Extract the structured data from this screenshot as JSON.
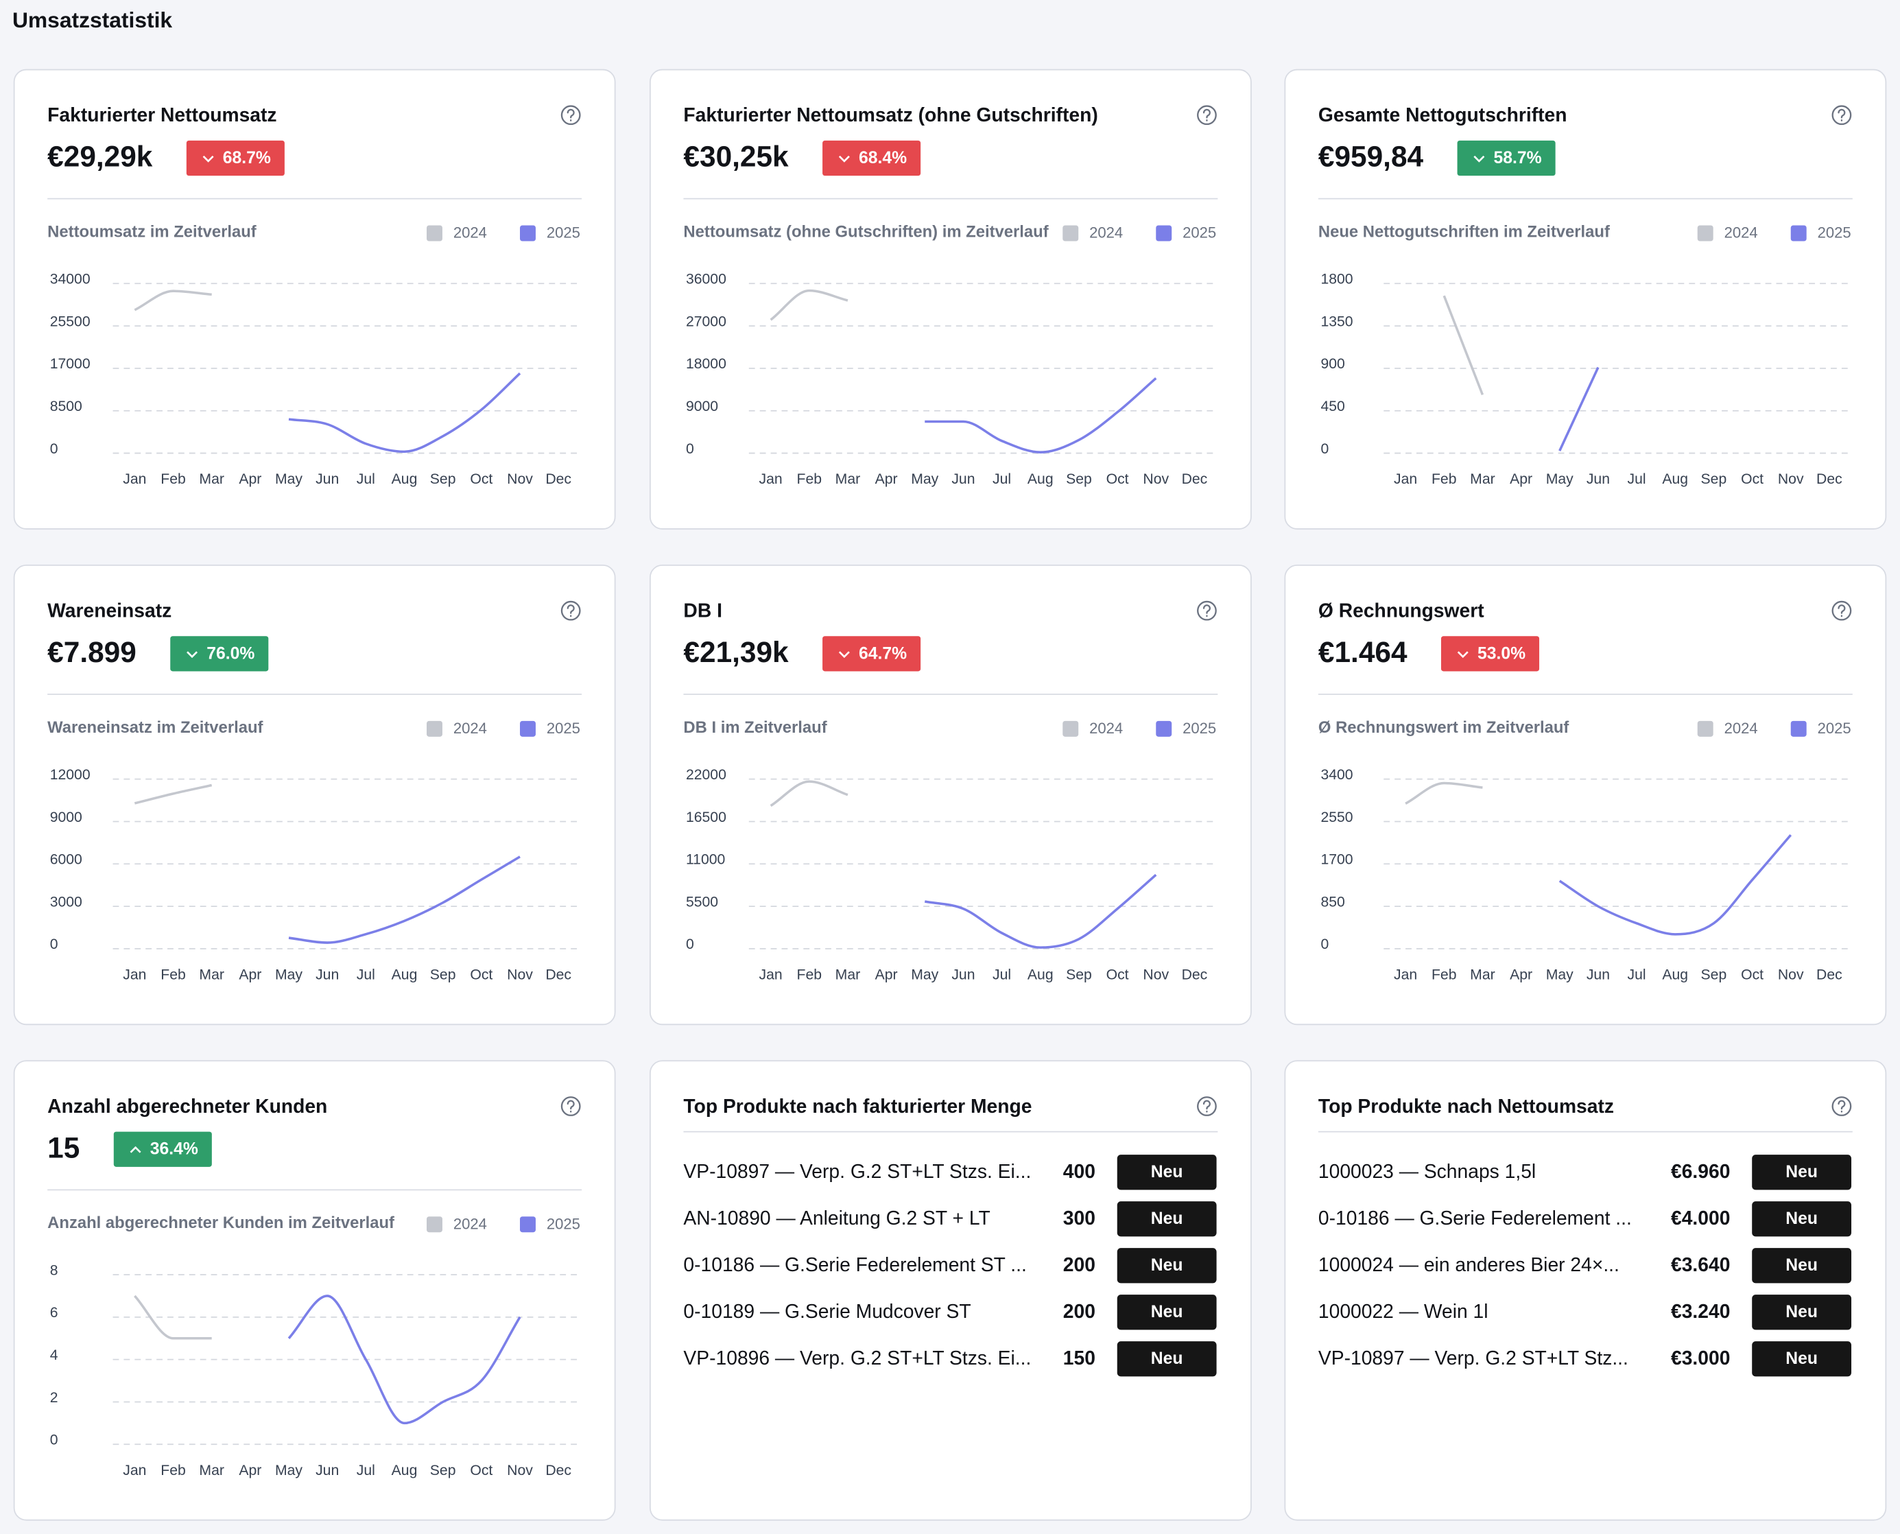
{
  "title": "Umsatzstatistik",
  "cards": [
    {
      "title": "Fakturierter Nettoumsatz",
      "value": "€29,29k",
      "change": "68.7%",
      "direction": "down",
      "badge_color": "#e5484d",
      "chart_data": {
        "type": "line",
        "title": "Nettoumsatz im Zeitverlauf",
        "categories": [
          "Jan",
          "Feb",
          "Mar",
          "Apr",
          "May",
          "Jun",
          "Jul",
          "Aug",
          "Sep",
          "Oct",
          "Nov",
          "Dec"
        ],
        "series": [
          {
            "name": "2024",
            "color": "#c4c7ce",
            "values": [
              28700,
              32500,
              31800,
              null,
              null,
              null,
              null,
              null,
              null,
              null,
              null,
              null
            ]
          },
          {
            "name": "2025",
            "color": "#7b7fe8",
            "values": [
              null,
              null,
              null,
              null,
              6800,
              5800,
              1900,
              300,
              3400,
              8700,
              16000,
              null
            ]
          }
        ],
        "ylim": [
          0,
          34000
        ],
        "yticks": [
          0,
          8500,
          17000,
          25500,
          34000
        ],
        "grid": true
      }
    },
    {
      "title": "Fakturierter Nettoumsatz (ohne Gutschriften)",
      "value": "€30,25k",
      "change": "68.4%",
      "direction": "down",
      "badge_color": "#e5484d",
      "chart_data": {
        "type": "line",
        "title": "Nettoumsatz (ohne Gutschriften) im Zeitverlauf",
        "categories": [
          "Jan",
          "Feb",
          "Mar",
          "Apr",
          "May",
          "Jun",
          "Jul",
          "Aug",
          "Sep",
          "Oct",
          "Nov",
          "Dec"
        ],
        "series": [
          {
            "name": "2024",
            "color": "#c4c7ce",
            "values": [
              28300,
              34500,
              32400,
              null,
              null,
              null,
              null,
              null,
              null,
              null,
              null,
              null
            ]
          },
          {
            "name": "2025",
            "color": "#7b7fe8",
            "values": [
              null,
              null,
              null,
              null,
              6700,
              6700,
              2600,
              200,
              2800,
              8700,
              15900,
              null
            ]
          }
        ],
        "ylim": [
          0,
          36000
        ],
        "yticks": [
          0,
          9000,
          18000,
          27000,
          36000
        ],
        "grid": true
      }
    },
    {
      "title": "Gesamte Nettogutschriften",
      "value": "€959,84",
      "change": "58.7%",
      "direction": "down",
      "badge_color": "#2f9e6a",
      "chart_data": {
        "type": "line",
        "title": "Neue Nettogutschriften im Zeitverlauf",
        "categories": [
          "Jan",
          "Feb",
          "Mar",
          "Apr",
          "May",
          "Jun",
          "Jul",
          "Aug",
          "Sep",
          "Oct",
          "Nov",
          "Dec"
        ],
        "series": [
          {
            "name": "2024",
            "color": "#c4c7ce",
            "values": [
              null,
              1670,
              620,
              null,
              null,
              null,
              null,
              null,
              null,
              null,
              null,
              null
            ]
          },
          {
            "name": "2025",
            "color": "#7b7fe8",
            "values": [
              null,
              null,
              null,
              null,
              25,
              910,
              null,
              null,
              null,
              null,
              null,
              null
            ]
          }
        ],
        "ylim": [
          0,
          1800
        ],
        "yticks": [
          0,
          450,
          900,
          1350,
          1800
        ],
        "grid": true
      }
    },
    {
      "title": "Wareneinsatz",
      "value": "€7.899",
      "change": "76.0%",
      "direction": "down",
      "badge_color": "#2f9e6a",
      "chart_data": {
        "type": "line",
        "title": "Wareneinsatz im Zeitverlauf",
        "categories": [
          "Jan",
          "Feb",
          "Mar",
          "Apr",
          "May",
          "Jun",
          "Jul",
          "Aug",
          "Sep",
          "Oct",
          "Nov",
          "Dec"
        ],
        "series": [
          {
            "name": "2024",
            "color": "#c4c7ce",
            "values": [
              10290,
              10970,
              11570,
              null,
              null,
              null,
              null,
              null,
              null,
              null,
              null,
              null
            ]
          },
          {
            "name": "2025",
            "color": "#7b7fe8",
            "values": [
              null,
              null,
              null,
              null,
              770,
              430,
              1030,
              1970,
              3260,
              4890,
              6510,
              null
            ]
          }
        ],
        "ylim": [
          0,
          12000
        ],
        "yticks": [
          0,
          3000,
          6000,
          9000,
          12000
        ],
        "grid": true
      }
    },
    {
      "title": "DB I",
      "value": "€21,39k",
      "change": "64.7%",
      "direction": "down",
      "badge_color": "#e5484d",
      "chart_data": {
        "type": "line",
        "title": "DB I im Zeitverlauf",
        "categories": [
          "Jan",
          "Feb",
          "Mar",
          "Apr",
          "May",
          "Jun",
          "Jul",
          "Aug",
          "Sep",
          "Oct",
          "Nov",
          "Dec"
        ],
        "series": [
          {
            "name": "2024",
            "color": "#c4c7ce",
            "values": [
              18540,
              21690,
              19960,
              null,
              null,
              null,
              null,
              null,
              null,
              null,
              null,
              null
            ]
          },
          {
            "name": "2025",
            "color": "#7b7fe8",
            "values": [
              null,
              null,
              null,
              null,
              6130,
              5190,
              2040,
              160,
              1260,
              5190,
              9590,
              null
            ]
          }
        ],
        "ylim": [
          0,
          22000
        ],
        "yticks": [
          0,
          5500,
          11000,
          16500,
          22000
        ],
        "grid": true
      }
    },
    {
      "title": "Ø Rechnungswert",
      "value": "€1.464",
      "change": "53.0%",
      "direction": "down",
      "badge_color": "#e5484d",
      "chart_data": {
        "type": "line",
        "title": "Ø Rechnungswert im Zeitverlauf",
        "categories": [
          "Jan",
          "Feb",
          "Mar",
          "Apr",
          "May",
          "Jun",
          "Jul",
          "Aug",
          "Sep",
          "Oct",
          "Nov",
          "Dec"
        ],
        "series": [
          {
            "name": "2024",
            "color": "#c4c7ce",
            "values": [
              2910,
              3320,
              3230,
              null,
              null,
              null,
              null,
              null,
              null,
              null,
              null,
              null
            ]
          },
          {
            "name": "2025",
            "color": "#7b7fe8",
            "values": [
              null,
              null,
              null,
              null,
              1360,
              850,
              510,
              290,
              510,
              1380,
              2280,
              null
            ]
          }
        ],
        "ylim": [
          0,
          3400
        ],
        "yticks": [
          0,
          850,
          1700,
          2550,
          3400
        ],
        "grid": true
      }
    },
    {
      "title": "Anzahl abgerechneter Kunden",
      "value": "15",
      "change": "36.4%",
      "direction": "up",
      "badge_color": "#2f9e6a",
      "chart_data": {
        "type": "line",
        "title": "Anzahl abgerechneter Kunden im Zeitverlauf",
        "categories": [
          "Jan",
          "Feb",
          "Mar",
          "Apr",
          "May",
          "Jun",
          "Jul",
          "Aug",
          "Sep",
          "Oct",
          "Nov",
          "Dec"
        ],
        "series": [
          {
            "name": "2024",
            "color": "#c4c7ce",
            "values": [
              7,
              5,
              5,
              null,
              null,
              null,
              null,
              null,
              null,
              null,
              null,
              null
            ]
          },
          {
            "name": "2025",
            "color": "#7b7fe8",
            "values": [
              null,
              null,
              null,
              null,
              5,
              7,
              4,
              1,
              2,
              3,
              6,
              null
            ]
          }
        ],
        "ylim": [
          0,
          8
        ],
        "yticks": [
          0,
          2,
          4,
          6,
          8
        ],
        "grid": true
      }
    },
    {
      "title": "Top Produkte nach fakturierter Menge",
      "products": [
        {
          "name": "VP-10897 — Verp. G.2 ST+LT Stzs. Ei...",
          "value": 400,
          "badge": "Neu"
        },
        {
          "name": "AN-10890 — Anleitung G.2 ST + LT",
          "value": 300,
          "badge": "Neu"
        },
        {
          "name": "0-10186 — G.Serie Federelement ST ...",
          "value": 200,
          "badge": "Neu"
        },
        {
          "name": "0-10189 — G.Serie Mudcover ST",
          "value": 200,
          "badge": "Neu"
        },
        {
          "name": "VP-10896 — Verp. G.2 ST+LT Stzs. Ei...",
          "value": 150,
          "badge": "Neu"
        }
      ]
    },
    {
      "title": "Top Produkte nach Nettoumsatz",
      "products": [
        {
          "name": "1000023 — Schnaps 1,5l",
          "value": "€6.960",
          "badge": "Neu"
        },
        {
          "name": "0-10186 — G.Serie Federelement ...",
          "value": "€4.000",
          "badge": "Neu"
        },
        {
          "name": "1000024 — ein anderes Bier 24×...",
          "value": "€3.640",
          "badge": "Neu"
        },
        {
          "name": "1000022 — Wein 1l",
          "value": "€3.240",
          "badge": "Neu"
        },
        {
          "name": "VP-10897 — Verp. G.2 ST+LT Stz...",
          "value": "€3.000",
          "badge": "Neu"
        }
      ]
    }
  ]
}
